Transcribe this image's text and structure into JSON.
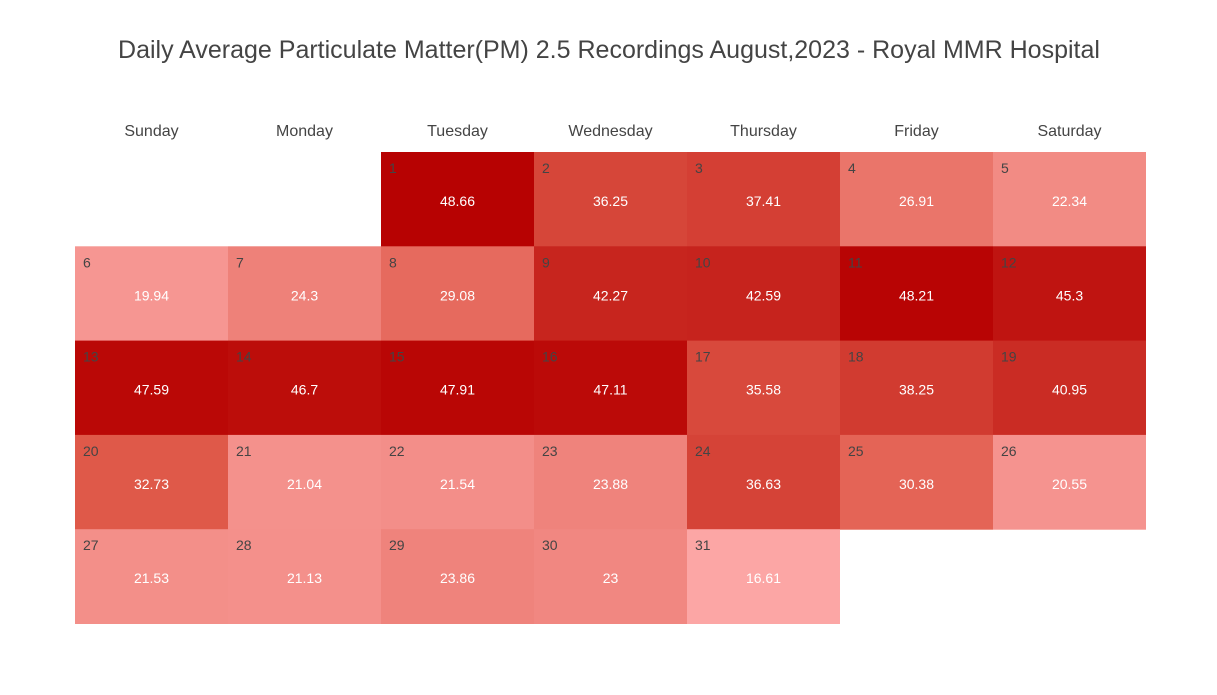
{
  "chart_data": {
    "type": "heatmap",
    "title": "Daily Average Particulate Matter(PM) 2.5 Recordings August,2023 - Royal MMR Hospital",
    "weekdays": [
      "Sunday",
      "Monday",
      "Tuesday",
      "Wednesday",
      "Thursday",
      "Friday",
      "Saturday"
    ],
    "first_weekday_index": 2,
    "days": [
      1,
      2,
      3,
      4,
      5,
      6,
      7,
      8,
      9,
      10,
      11,
      12,
      13,
      14,
      15,
      16,
      17,
      18,
      19,
      20,
      21,
      22,
      23,
      24,
      25,
      26,
      27,
      28,
      29,
      30,
      31
    ],
    "values": [
      48.66,
      36.25,
      37.41,
      26.91,
      22.34,
      19.94,
      24.3,
      29.08,
      42.27,
      42.59,
      48.21,
      45.3,
      47.59,
      46.7,
      47.91,
      47.11,
      35.58,
      38.25,
      40.95,
      32.73,
      21.04,
      21.54,
      23.88,
      36.63,
      30.38,
      20.55,
      21.53,
      21.13,
      23.86,
      23,
      16.61
    ],
    "value_labels": [
      "48.66",
      "36.25",
      "37.41",
      "26.91",
      "22.34",
      "19.94",
      "24.3",
      "29.08",
      "42.27",
      "42.59",
      "48.21",
      "45.3",
      "47.59",
      "46.7",
      "47.91",
      "47.11",
      "35.58",
      "38.25",
      "40.95",
      "32.73",
      "21.04",
      "21.54",
      "23.88",
      "36.63",
      "30.38",
      "20.55",
      "21.53",
      "21.13",
      "23.86",
      "23",
      "16.61"
    ],
    "color_scale": {
      "low": "#fda9a9",
      "mid": "#e05a4a",
      "high": "#b60000",
      "min_value": 16,
      "max_value": 49
    },
    "legend": "none",
    "grid": false
  }
}
